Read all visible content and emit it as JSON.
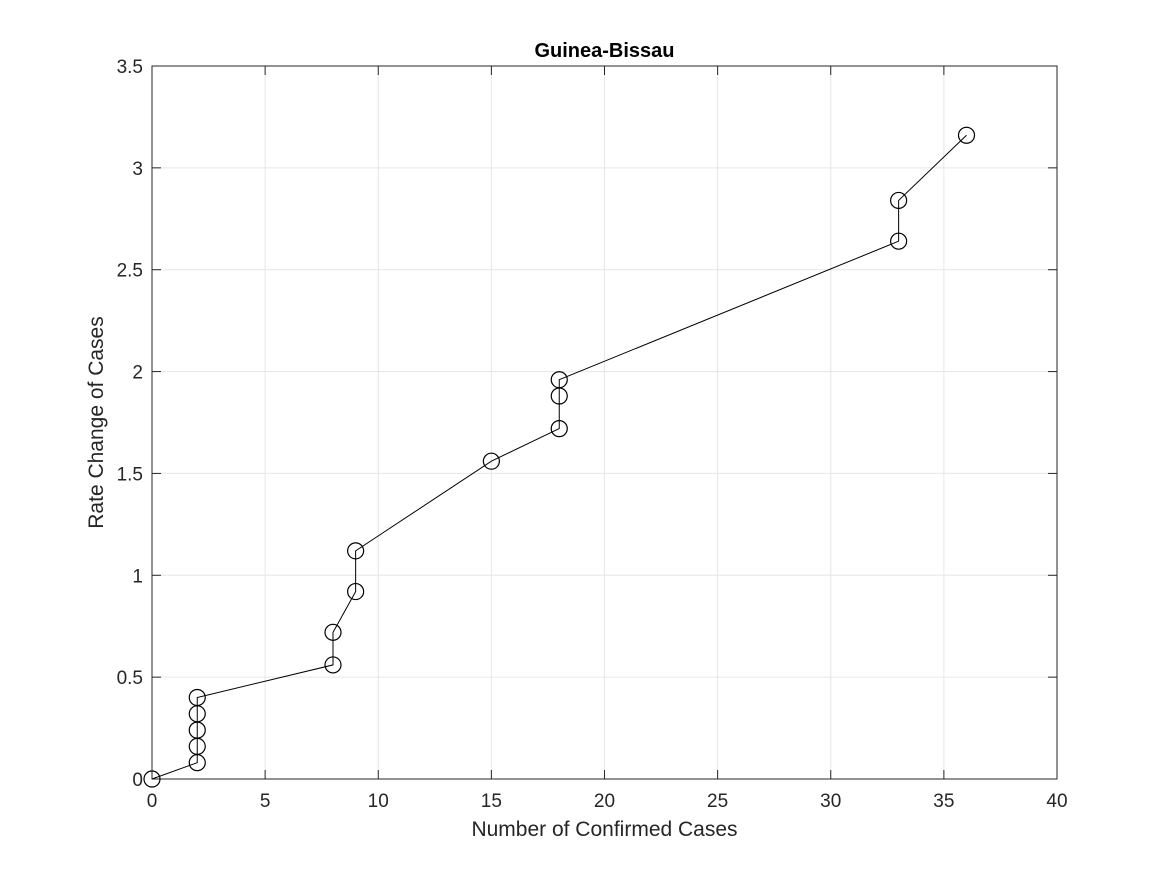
{
  "chart_data": {
    "type": "line",
    "title": "Guinea-Bissau",
    "xlabel": "Number of Confirmed Cases",
    "ylabel": "Rate Change of Cases",
    "xlim": [
      0,
      40
    ],
    "ylim": [
      0,
      3.5
    ],
    "x_ticks": [
      0,
      5,
      10,
      15,
      20,
      25,
      30,
      35,
      40
    ],
    "y_ticks": [
      0,
      0.5,
      1,
      1.5,
      2,
      2.5,
      3,
      3.5
    ],
    "x_tick_labels": [
      "0",
      "5",
      "10",
      "15",
      "20",
      "25",
      "30",
      "35",
      "40"
    ],
    "y_tick_labels": [
      "0",
      "0.5",
      "1",
      "1.5",
      "2",
      "2.5",
      "3",
      "3.5"
    ],
    "grid": true,
    "marker": "circle-open",
    "line_color": "#000000",
    "grid_color": "#e6e6e6",
    "axis_color": "#262626",
    "series": [
      {
        "x": [
          0,
          2,
          2,
          2,
          2,
          2,
          8,
          8,
          9,
          9,
          15,
          18,
          18,
          18,
          33,
          33,
          36
        ],
        "y": [
          0,
          0.08,
          0.16,
          0.24,
          0.32,
          0.4,
          0.56,
          0.72,
          0.92,
          1.12,
          1.56,
          1.72,
          1.88,
          1.96,
          2.64,
          2.84,
          3.16
        ]
      }
    ]
  }
}
